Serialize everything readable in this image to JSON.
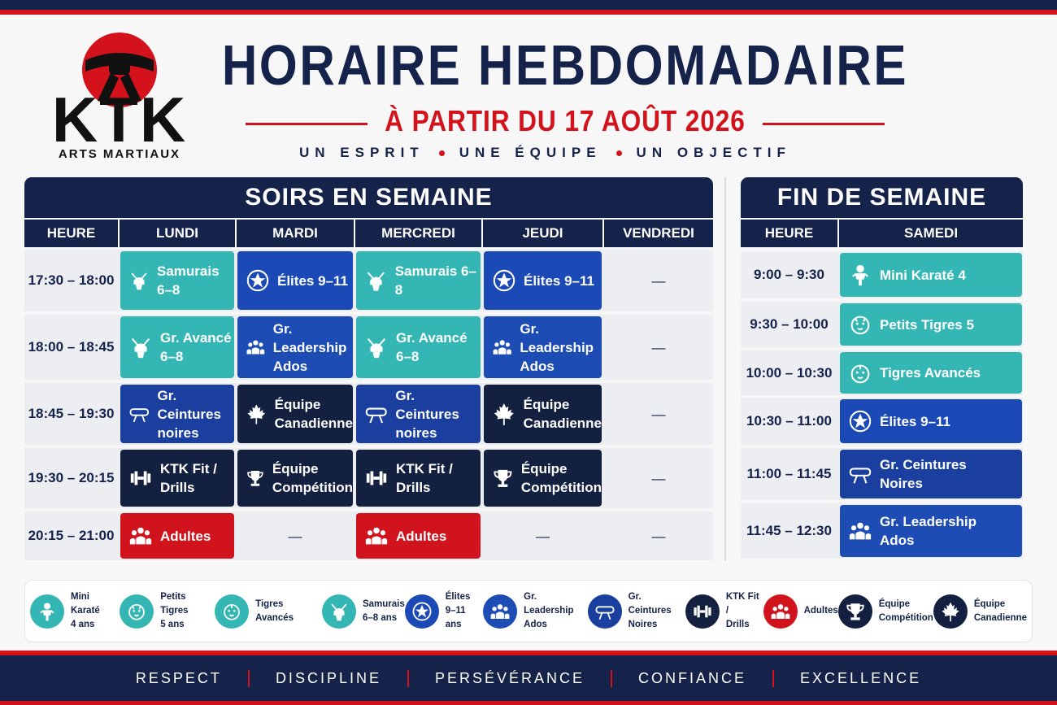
{
  "logo": {
    "name": "KTK",
    "tagline": "ARTS MARTIAUX"
  },
  "header": {
    "title": "HORAIRE HEBDOMADAIRE",
    "subtitle": "À PARTIR DU 17 AOÛT 2026",
    "motto": [
      "UN ESPRIT",
      "UNE ÉQUIPE",
      "UN OBJECTIF"
    ]
  },
  "weekday": {
    "title": "SOIRS EN SEMAINE",
    "columns": [
      "HEURE",
      "LUNDI",
      "MARDI",
      "MERCREDI",
      "JEUDI",
      "VENDREDI"
    ],
    "rows": [
      {
        "time": "17:30 – 18:00",
        "cells": [
          {
            "label": "Samurais 6–8",
            "legend": 3
          },
          {
            "label": "Élites 9–11",
            "legend": 4
          },
          {
            "label": "Samurais 6–8",
            "legend": 3
          },
          {
            "label": "Élites 9–11",
            "legend": 4
          },
          {
            "label": "—"
          }
        ]
      },
      {
        "time": "18:00 – 18:45",
        "cells": [
          {
            "label": "Gr. Avancé\n6–8",
            "legend": 3
          },
          {
            "label": "Gr. Leadership\nAdos",
            "legend": 5
          },
          {
            "label": "Gr. Avancé\n6–8",
            "legend": 3
          },
          {
            "label": "Gr. Leadership\nAdos",
            "legend": 5
          },
          {
            "label": "—"
          }
        ]
      },
      {
        "time": "18:45 – 19:30",
        "cells": [
          {
            "label": "Gr. Ceintures\nnoires",
            "legend": 6
          },
          {
            "label": "Équipe\nCanadienne",
            "legend": 10
          },
          {
            "label": "Gr. Ceintures\nnoires",
            "legend": 6
          },
          {
            "label": "Équipe\nCanadienne",
            "legend": 10
          },
          {
            "label": "—"
          }
        ]
      },
      {
        "time": "19:30 – 20:15",
        "cells": [
          {
            "label": "KTK Fit /\nDrills",
            "legend": 7
          },
          {
            "label": "Équipe\nCompétition",
            "legend": 9
          },
          {
            "label": "KTK Fit /\nDrills",
            "legend": 7
          },
          {
            "label": "Équipe\nCompétition",
            "legend": 9
          },
          {
            "label": "—"
          }
        ]
      },
      {
        "time": "20:15 – 21:00",
        "cells": [
          {
            "label": "Adultes",
            "legend": 8
          },
          {
            "label": "—"
          },
          {
            "label": "Adultes",
            "legend": 8
          },
          {
            "label": "—"
          },
          {
            "label": "—"
          }
        ]
      }
    ]
  },
  "weekend": {
    "title": "FIN DE SEMAINE",
    "columns": [
      "HEURE",
      "SAMEDI"
    ],
    "rows": [
      {
        "time": "9:00 – 9:30",
        "cells": [
          {
            "label": "Mini Karaté 4",
            "legend": 0
          }
        ]
      },
      {
        "time": "9:30 – 10:00",
        "cells": [
          {
            "label": "Petits Tigres 5",
            "legend": 1
          }
        ]
      },
      {
        "time": "10:00 – 10:30",
        "cells": [
          {
            "label": "Tigres Avancés",
            "legend": 2
          }
        ]
      },
      {
        "time": "10:30 – 11:00",
        "cells": [
          {
            "label": "Élites 9–11",
            "legend": 4
          }
        ]
      },
      {
        "time": "11:00 – 11:45",
        "cells": [
          {
            "label": "Gr. Ceintures\nNoires",
            "legend": 6
          }
        ]
      },
      {
        "time": "11:45 – 12:30",
        "cells": [
          {
            "label": "Gr. Leadership\nAdos",
            "legend": 5
          }
        ]
      }
    ]
  },
  "legend": [
    {
      "label": "Mini Karaté\n4 ans",
      "color": "#34b7b4"
    },
    {
      "label": "Petits Tigres\n5 ans",
      "color": "#34b7b4"
    },
    {
      "label": "Tigres Avancés",
      "color": "#34b7b4"
    },
    {
      "label": "Samurais\n6–8 ans",
      "color": "#34b7b4"
    },
    {
      "label": "Élites\n9–11 ans",
      "color": "#1b49b5"
    },
    {
      "label": "Gr. Leadership\nAdos",
      "color": "#1d4cb5"
    },
    {
      "label": "Gr. Ceintures\nNoires",
      "color": "#1a3f9f"
    },
    {
      "label": "KTK Fit /\nDrills",
      "color": "#13203f"
    },
    {
      "label": "Adultes",
      "color": "#d0131c"
    },
    {
      "label": "Équipe\nCompétition",
      "color": "#13203f"
    },
    {
      "label": "Équipe\nCanadienne",
      "color": "#13203f"
    }
  ],
  "footer": {
    "values": [
      "RESPECT",
      "DISCIPLINE",
      "PERSÉVÉRANCE",
      "CONFIANCE",
      "EXCELLENCE"
    ]
  }
}
